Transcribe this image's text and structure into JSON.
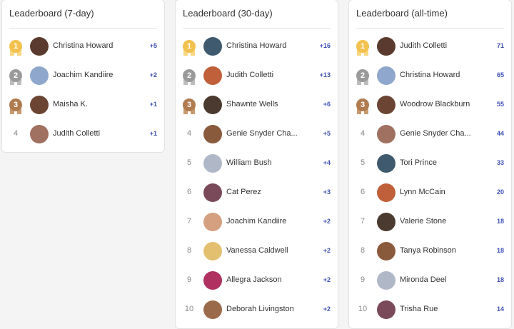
{
  "boards": [
    {
      "title": "Leaderboard (7-day)",
      "rows": [
        {
          "rank": 1,
          "name": "Christina Howard",
          "score": "+5"
        },
        {
          "rank": 2,
          "name": "Joachim Kandiire",
          "score": "+2"
        },
        {
          "rank": 3,
          "name": "Maisha K.",
          "score": "+1"
        },
        {
          "rank": 4,
          "name": "Judith Colletti",
          "score": "+1"
        }
      ]
    },
    {
      "title": "Leaderboard (30-day)",
      "rows": [
        {
          "rank": 1,
          "name": "Christina Howard",
          "score": "+16"
        },
        {
          "rank": 2,
          "name": "Judith Colletti",
          "score": "+13"
        },
        {
          "rank": 3,
          "name": "Shawnte Wells",
          "score": "+6"
        },
        {
          "rank": 4,
          "name": "Genie Snyder Cha...",
          "score": "+5"
        },
        {
          "rank": 5,
          "name": "William Bush",
          "score": "+4"
        },
        {
          "rank": 6,
          "name": "Cat Perez",
          "score": "+3"
        },
        {
          "rank": 7,
          "name": "Joachim Kandiire",
          "score": "+2"
        },
        {
          "rank": 8,
          "name": "Vanessa Caldwell",
          "score": "+2"
        },
        {
          "rank": 9,
          "name": "Allegra Jackson",
          "score": "+2"
        },
        {
          "rank": 10,
          "name": "Deborah Livingston",
          "score": "+2"
        }
      ]
    },
    {
      "title": "Leaderboard (all-time)",
      "rows": [
        {
          "rank": 1,
          "name": "Judith Colletti",
          "score": 71
        },
        {
          "rank": 2,
          "name": "Christina Howard",
          "score": 65
        },
        {
          "rank": 3,
          "name": "Woodrow Blackburn",
          "score": 55
        },
        {
          "rank": 4,
          "name": "Genie Snyder Cha...",
          "score": 44
        },
        {
          "rank": 5,
          "name": "Tori Prince",
          "score": 33
        },
        {
          "rank": 6,
          "name": "Lynn McCain",
          "score": 20
        },
        {
          "rank": 7,
          "name": "Valerie Stone",
          "score": 18
        },
        {
          "rank": 8,
          "name": "Tanya Robinson",
          "score": 18
        },
        {
          "rank": 9,
          "name": "Mironda Deel",
          "score": 18
        },
        {
          "rank": 10,
          "name": "Trisha Rue",
          "score": 14
        }
      ]
    }
  ]
}
